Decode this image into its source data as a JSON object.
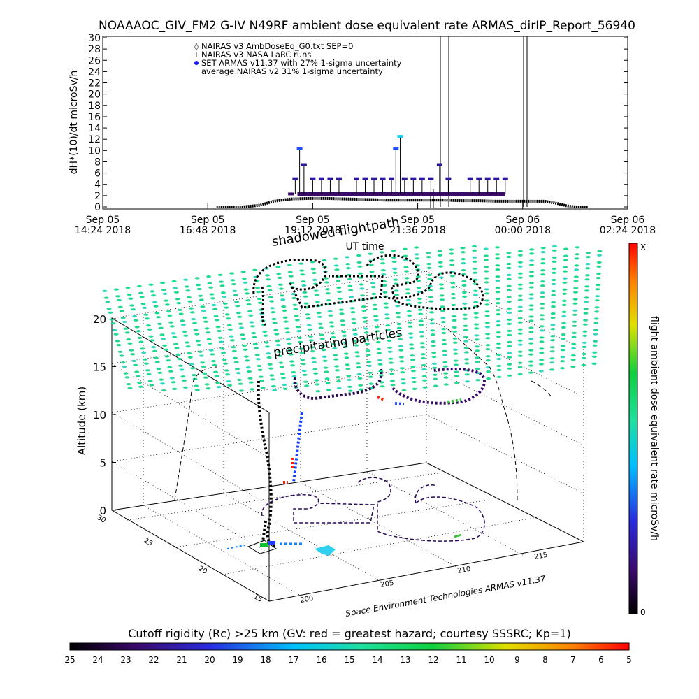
{
  "header": {
    "title": "NOAAAOC_GIV_FM2 G-IV    N49RF   ambient dose equivalent rate ARMAS_dirIP_Report_56940"
  },
  "chart_data": [
    {
      "type": "line",
      "ylabel": "dH*(10)/dt microSv/h",
      "xlabel": "UT time",
      "ylim": [
        0,
        30
      ],
      "yticks": [
        "0",
        "2",
        "4",
        "6",
        "8",
        "10",
        "12",
        "14",
        "16",
        "18",
        "20",
        "22",
        "24",
        "26",
        "28",
        "30"
      ],
      "xticks": [
        {
          "line1": "Sep 05",
          "line2": "14:24 2018"
        },
        {
          "line1": "Sep 05",
          "line2": "16:48 2018"
        },
        {
          "line1": "Sep 05",
          "line2": "19:12 2018"
        },
        {
          "line1": "Sep 05",
          "line2": "21:36 2018"
        },
        {
          "line1": "Sep 06",
          "line2": "00:00 2018"
        },
        {
          "line1": "Sep 06",
          "line2": "02:24 2018"
        }
      ],
      "xlim_hours": [
        14.4,
        26.4
      ],
      "legend_position": "top-left",
      "legend": [
        {
          "symbol": "◊",
          "label": "NAIRAS v3 AmbDoseEq_G0.txt SEP=0"
        },
        {
          "symbol": "+",
          "label": "NAIRAS v3 NASA LaRC runs"
        },
        {
          "symbol": "●",
          "label": "SET ARMAS v11.37 with 27% 1-sigma uncertainty"
        },
        {
          "symbol": "",
          "label": "average NAIRAS v2 31% 1-sigma uncertainty"
        }
      ],
      "series": [
        {
          "name": "NAIRAS v3 AmbDoseEq_G0.txt SEP=0",
          "x_hours": [
            17.0,
            17.6,
            18.0,
            18.3,
            18.7,
            19.1,
            19.5,
            20.0,
            20.5,
            20.9,
            21.3,
            21.7,
            22.2,
            22.6,
            23.0,
            23.4,
            23.8,
            24.2,
            24.5,
            24.8,
            25.0,
            25.2,
            25.5
          ],
          "values": [
            0,
            0,
            0.3,
            1.0,
            1.4,
            1.5,
            1.5,
            1.4,
            1.3,
            1.2,
            1.2,
            1.2,
            1.2,
            1.1,
            1.1,
            1.0,
            1.0,
            1.0,
            1.0,
            0.6,
            0.2,
            0,
            0
          ]
        },
        {
          "name": "SET ARMAS v11.37 with 27% 1-sigma uncertainty",
          "x_hours": [
            18.7,
            18.8,
            18.9,
            19.0,
            19.2,
            19.4,
            19.6,
            19.8,
            20.0,
            20.2,
            20.4,
            20.6,
            20.8,
            21.0,
            21.1,
            21.2,
            21.3,
            21.5,
            21.7,
            21.9,
            22.1,
            22.3,
            22.6,
            22.8,
            23.0,
            23.2,
            23.4,
            23.6
          ],
          "values": [
            2.3,
            5,
            10.3,
            7.5,
            5,
            5,
            5,
            5,
            2.4,
            5,
            5,
            5,
            5,
            5,
            10.3,
            12.5,
            5,
            5,
            5,
            5,
            7.5,
            5,
            2.4,
            5,
            5,
            5,
            5,
            5
          ]
        }
      ]
    },
    {
      "type": "scatter",
      "title": "Space Environment Technologies ARMAS v11.37",
      "zlabel": "Altitude (km)",
      "zticks": [
        "0",
        "5",
        "10",
        "15",
        "20"
      ],
      "lat_ticks": [
        "15",
        "20",
        "25",
        "30"
      ],
      "lon_ticks": [
        "200",
        "205",
        "210",
        "215"
      ],
      "annotations": [
        "shadowed flightpath",
        "precipitating particles"
      ],
      "colorbar": {
        "label": "flight ambient dose equivalent rate microSv/h",
        "top_label": "X",
        "bottom_label": "0"
      },
      "rc_colorbar": {
        "label": "Cutoff rigidity (Rc) >25 km (GV: red = greatest hazard; courtesy SSSRC; Kp=1)",
        "ticks": [
          "25",
          "24",
          "23",
          "22",
          "21",
          "20",
          "19",
          "18",
          "17",
          "16",
          "15",
          "14",
          "13",
          "12",
          "11",
          "10",
          "9",
          "8",
          "7",
          "6",
          "5"
        ]
      }
    }
  ]
}
